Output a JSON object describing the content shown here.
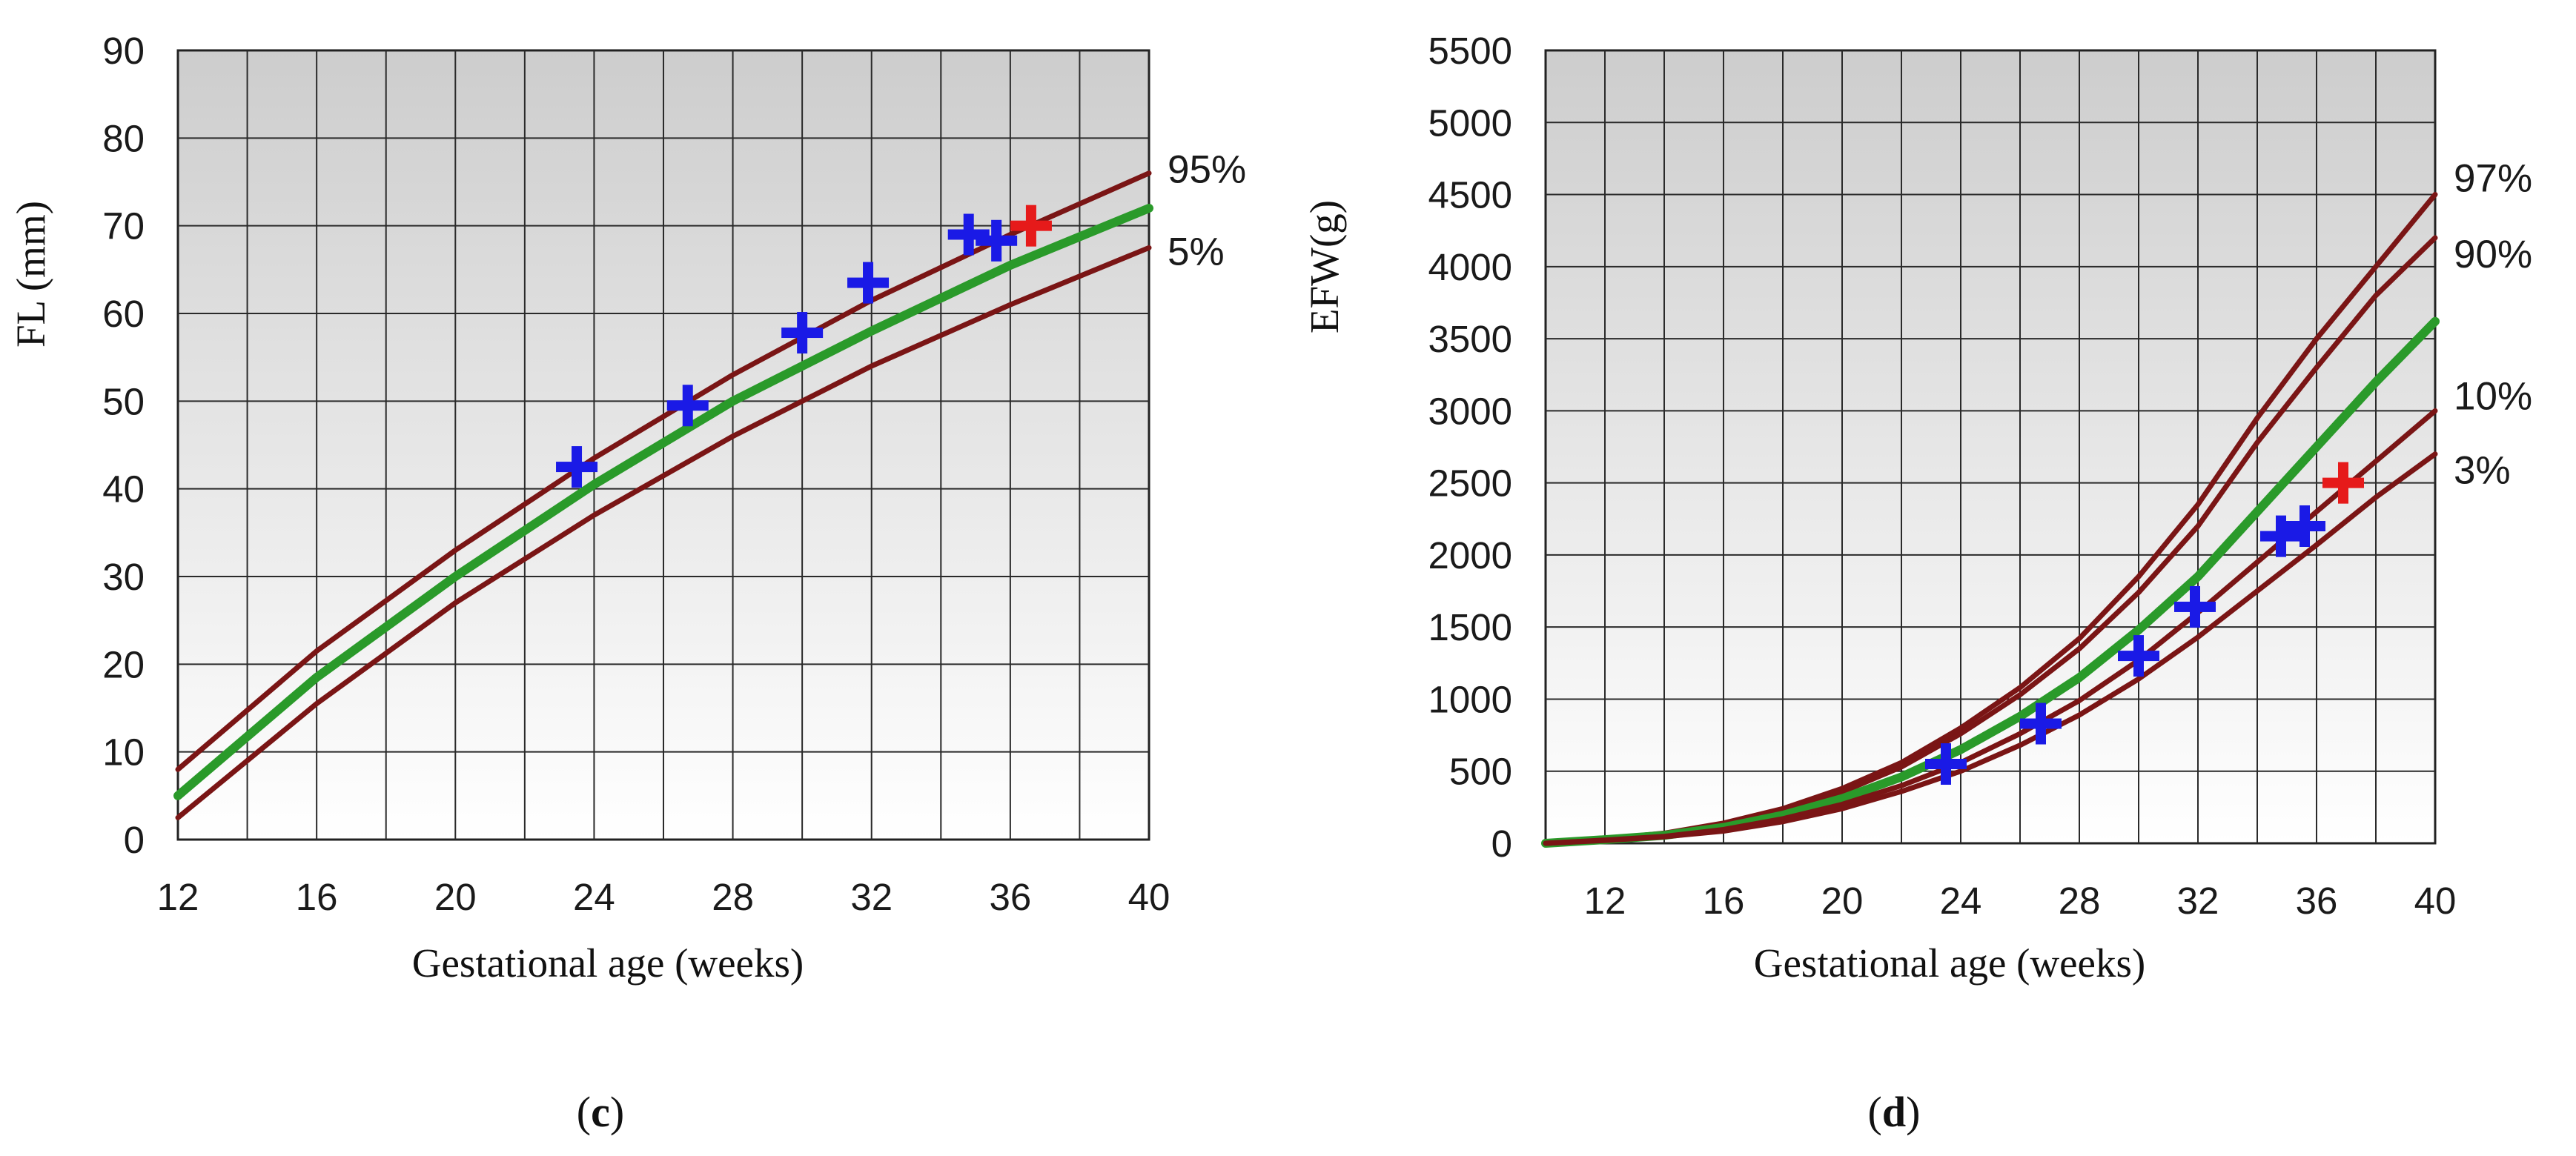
{
  "chart_data": [
    {
      "type": "line",
      "caption": "c",
      "xlabel": "Gestational age (weeks)",
      "ylabel": "FL (mm)",
      "xlim": [
        12,
        40
      ],
      "ylim": [
        0,
        90
      ],
      "x_ticks": [
        "12",
        "16",
        "20",
        "24",
        "28",
        "32",
        "36",
        "40"
      ],
      "y_ticks": [
        "0",
        "10",
        "20",
        "30",
        "40",
        "50",
        "60",
        "70",
        "80",
        "90"
      ],
      "grid": true,
      "curves": [
        {
          "name": "95%",
          "color": "#7a1515",
          "x": [
            12,
            16,
            20,
            24,
            28,
            32,
            36,
            40
          ],
          "y": [
            8,
            21.5,
            33,
            43.5,
            53,
            61.5,
            69,
            76
          ]
        },
        {
          "name": "",
          "color": "#2a9a2a",
          "x": [
            12,
            16,
            20,
            24,
            28,
            32,
            36,
            40
          ],
          "y": [
            5,
            18.5,
            30,
            40.5,
            50,
            58,
            65.5,
            72
          ]
        },
        {
          "name": "5%",
          "color": "#7a1515",
          "x": [
            12,
            16,
            20,
            24,
            28,
            32,
            36,
            40
          ],
          "y": [
            2.5,
            15.5,
            27,
            37,
            46,
            54,
            61,
            67.5
          ]
        }
      ],
      "measurements": {
        "color": "#1a1ae6",
        "points": [
          [
            23.5,
            42.5
          ],
          [
            26.7,
            49.5
          ],
          [
            30,
            57.8
          ],
          [
            31.9,
            63.5
          ],
          [
            34.8,
            69
          ],
          [
            35.6,
            68.3
          ]
        ]
      },
      "latest_measurement": {
        "color": "#e61a1a",
        "x": 36.6,
        "y": 70
      }
    },
    {
      "type": "line",
      "caption": "d",
      "xlabel": "Gestational age (weeks)",
      "ylabel": "EFW(g)",
      "xlim": [
        10,
        40
      ],
      "ylim": [
        0,
        5500
      ],
      "x_ticks": [
        "12",
        "16",
        "20",
        "24",
        "28",
        "32",
        "36",
        "40"
      ],
      "y_ticks": [
        "0",
        "500",
        "1000",
        "1500",
        "2000",
        "2500",
        "3000",
        "3500",
        "4000",
        "4500",
        "5000",
        "5500"
      ],
      "grid": true,
      "curves": [
        {
          "name": "97%",
          "color": "#7a1515",
          "x": [
            10,
            12,
            14,
            16,
            18,
            20,
            22,
            24,
            26,
            28,
            30,
            32,
            34,
            36,
            38,
            40
          ],
          "y": [
            0,
            30,
            70,
            140,
            240,
            380,
            560,
            800,
            1080,
            1420,
            1850,
            2350,
            2950,
            3500,
            4000,
            4500
          ]
        },
        {
          "name": "90%",
          "color": "#7a1515",
          "x": [
            10,
            12,
            14,
            16,
            18,
            20,
            22,
            24,
            26,
            28,
            30,
            32,
            34,
            36,
            38,
            40
          ],
          "y": [
            0,
            28,
            65,
            130,
            225,
            355,
            530,
            760,
            1030,
            1350,
            1740,
            2200,
            2780,
            3300,
            3800,
            4200
          ]
        },
        {
          "name": "",
          "color": "#2a9a2a",
          "x": [
            10,
            12,
            14,
            16,
            18,
            20,
            22,
            24,
            26,
            28,
            30,
            32,
            34,
            36,
            38,
            40
          ],
          "y": [
            0,
            25,
            55,
            110,
            195,
            310,
            460,
            650,
            880,
            1150,
            1480,
            1850,
            2300,
            2750,
            3200,
            3620
          ]
        },
        {
          "name": "10%",
          "color": "#7a1515",
          "x": [
            10,
            12,
            14,
            16,
            18,
            20,
            22,
            24,
            26,
            28,
            30,
            32,
            34,
            36,
            38,
            40
          ],
          "y": [
            0,
            22,
            48,
            95,
            170,
            270,
            400,
            560,
            760,
            990,
            1270,
            1600,
            1950,
            2300,
            2650,
            3000
          ]
        },
        {
          "name": "3%",
          "color": "#7a1515",
          "x": [
            10,
            12,
            14,
            16,
            18,
            20,
            22,
            24,
            26,
            28,
            30,
            32,
            34,
            36,
            38,
            40
          ],
          "y": [
            0,
            20,
            45,
            85,
            150,
            240,
            360,
            500,
            680,
            890,
            1140,
            1430,
            1750,
            2070,
            2400,
            2700
          ]
        }
      ],
      "measurements": {
        "color": "#1a1ae6",
        "points": [
          [
            23.5,
            550
          ],
          [
            26.7,
            830
          ],
          [
            30,
            1300
          ],
          [
            31.9,
            1640
          ],
          [
            34.8,
            2130
          ],
          [
            35.6,
            2200
          ]
        ]
      },
      "latest_measurement": {
        "color": "#e61a1a",
        "x": 36.9,
        "y": 2500
      }
    }
  ]
}
